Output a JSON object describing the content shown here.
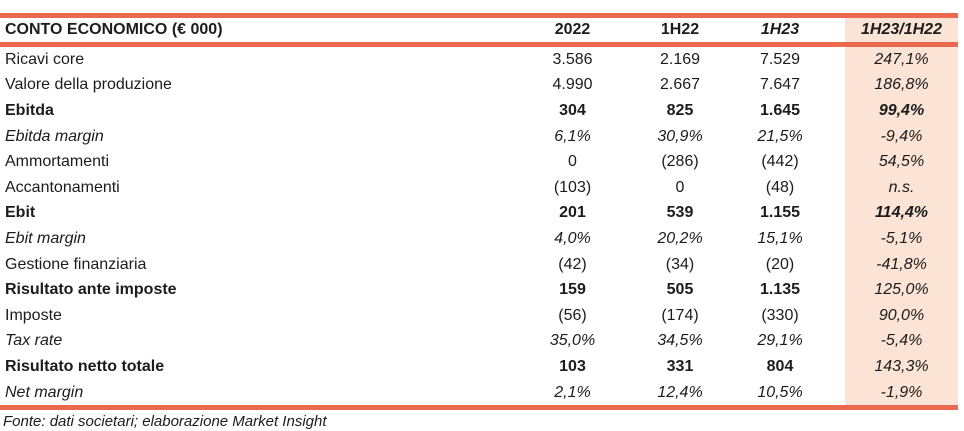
{
  "colors": {
    "line": "#EB6A4F",
    "highlight_bg": "#FBE3D5",
    "text": "#1C1C1C"
  },
  "table": {
    "title": "CONTO ECONOMICO (€ 000)",
    "columns": [
      "2022",
      "1H22",
      "1H23",
      "1H23/1H22"
    ],
    "rows": [
      {
        "label": "Ricavi core",
        "values": [
          "3.586",
          "2.169",
          "7.529",
          "247,1%"
        ]
      },
      {
        "label": "Valore della produzione",
        "values": [
          "4.990",
          "2.667",
          "7.647",
          "186,8%"
        ]
      },
      {
        "label": "Ebitda",
        "values": [
          "304",
          "825",
          "1.645",
          "99,4%"
        ]
      },
      {
        "label": "Ebitda margin",
        "values": [
          "6,1%",
          "30,9%",
          "21,5%",
          "-9,4%"
        ]
      },
      {
        "label": "Ammortamenti",
        "values": [
          "0",
          "(286)",
          "(442)",
          "54,5%"
        ]
      },
      {
        "label": "Accantonamenti",
        "values": [
          "(103)",
          "0",
          "(48)",
          "n.s."
        ]
      },
      {
        "label": "Ebit",
        "values": [
          "201",
          "539",
          "1.155",
          "114,4%"
        ]
      },
      {
        "label": "Ebit margin",
        "values": [
          "4,0%",
          "20,2%",
          "15,1%",
          "-5,1%"
        ]
      },
      {
        "label": "Gestione finanziaria",
        "values": [
          "(42)",
          "(34)",
          "(20)",
          "-41,8%"
        ]
      },
      {
        "label": "Risultato ante imposte",
        "values": [
          "159",
          "505",
          "1.135",
          "125,0%"
        ]
      },
      {
        "label": "Imposte",
        "values": [
          "(56)",
          "(174)",
          "(330)",
          "90,0%"
        ]
      },
      {
        "label": "Tax rate",
        "values": [
          "35,0%",
          "34,5%",
          "29,1%",
          "-5,4%"
        ]
      },
      {
        "label": "Risultato netto totale",
        "values": [
          "103",
          "331",
          "804",
          "143,3%"
        ]
      },
      {
        "label": "Net margin",
        "values": [
          "2,1%",
          "12,4%",
          "10,5%",
          "-1,9%"
        ]
      }
    ],
    "footnote": "Fonte: dati societari; elaborazione Market Insight"
  }
}
